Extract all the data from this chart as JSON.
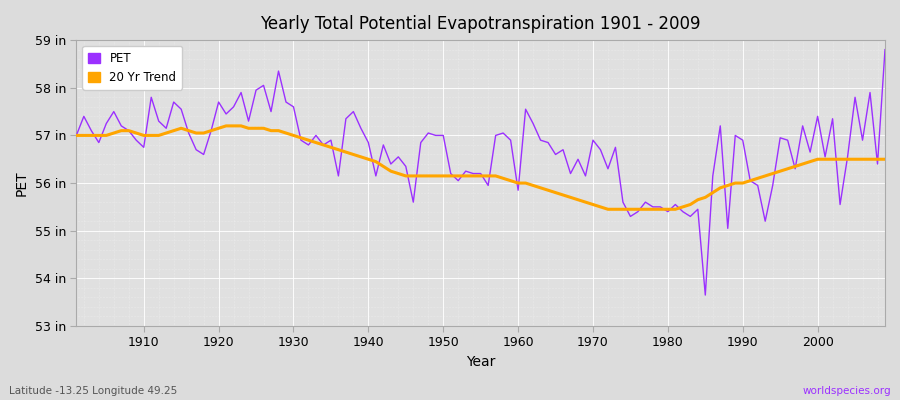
{
  "title": "Yearly Total Potential Evapotranspiration 1901 - 2009",
  "xlabel": "Year",
  "ylabel": "PET",
  "subtitle": "Latitude -13.25 Longitude 49.25",
  "watermark": "worldspecies.org",
  "years": [
    1901,
    1902,
    1903,
    1904,
    1905,
    1906,
    1907,
    1908,
    1909,
    1910,
    1911,
    1912,
    1913,
    1914,
    1915,
    1916,
    1917,
    1918,
    1919,
    1920,
    1921,
    1922,
    1923,
    1924,
    1925,
    1926,
    1927,
    1928,
    1929,
    1930,
    1931,
    1932,
    1933,
    1934,
    1935,
    1936,
    1937,
    1938,
    1939,
    1940,
    1941,
    1942,
    1943,
    1944,
    1945,
    1946,
    1947,
    1948,
    1949,
    1950,
    1951,
    1952,
    1953,
    1954,
    1955,
    1956,
    1957,
    1958,
    1959,
    1960,
    1961,
    1962,
    1963,
    1964,
    1965,
    1966,
    1967,
    1968,
    1969,
    1970,
    1971,
    1972,
    1973,
    1974,
    1975,
    1976,
    1977,
    1978,
    1979,
    1980,
    1981,
    1982,
    1983,
    1984,
    1985,
    1986,
    1987,
    1988,
    1989,
    1990,
    1991,
    1992,
    1993,
    1994,
    1995,
    1996,
    1997,
    1998,
    1999,
    2000,
    2001,
    2002,
    2003,
    2004,
    2005,
    2006,
    2007,
    2008,
    2009
  ],
  "pet": [
    57.0,
    57.4,
    57.1,
    56.85,
    57.25,
    57.5,
    57.2,
    57.1,
    56.9,
    56.75,
    57.8,
    57.3,
    57.15,
    57.7,
    57.55,
    57.05,
    56.7,
    56.6,
    57.1,
    57.7,
    57.45,
    57.6,
    57.9,
    57.3,
    57.95,
    58.05,
    57.5,
    58.35,
    57.7,
    57.6,
    56.9,
    56.8,
    57.0,
    56.8,
    56.9,
    56.15,
    57.35,
    57.5,
    57.15,
    56.85,
    56.15,
    56.8,
    56.4,
    56.55,
    56.35,
    55.6,
    56.85,
    57.05,
    57.0,
    57.0,
    56.2,
    56.05,
    56.25,
    56.2,
    56.2,
    55.95,
    57.0,
    57.05,
    56.9,
    55.85,
    57.55,
    57.25,
    56.9,
    56.85,
    56.6,
    56.7,
    56.2,
    56.5,
    56.15,
    56.9,
    56.7,
    56.3,
    56.75,
    55.6,
    55.3,
    55.4,
    55.6,
    55.5,
    55.5,
    55.4,
    55.55,
    55.4,
    55.3,
    55.45,
    53.65,
    56.15,
    57.2,
    55.05,
    57.0,
    56.9,
    56.05,
    55.95,
    55.2,
    55.95,
    56.95,
    56.9,
    56.3,
    57.2,
    56.65,
    57.4,
    56.55,
    57.35,
    55.55,
    56.55,
    57.8,
    56.9,
    57.9,
    56.4,
    58.8
  ],
  "trend": [
    57.0,
    57.0,
    57.0,
    57.0,
    57.0,
    57.05,
    57.1,
    57.1,
    57.05,
    57.0,
    57.0,
    57.0,
    57.05,
    57.1,
    57.15,
    57.1,
    57.05,
    57.05,
    57.1,
    57.15,
    57.2,
    57.2,
    57.2,
    57.15,
    57.15,
    57.15,
    57.1,
    57.1,
    57.05,
    57.0,
    56.95,
    56.9,
    56.85,
    56.8,
    56.75,
    56.7,
    56.65,
    56.6,
    56.55,
    56.5,
    56.45,
    56.35,
    56.25,
    56.2,
    56.15,
    56.15,
    56.15,
    56.15,
    56.15,
    56.15,
    56.15,
    56.15,
    56.15,
    56.15,
    56.15,
    56.15,
    56.15,
    56.1,
    56.05,
    56.0,
    56.0,
    55.95,
    55.9,
    55.85,
    55.8,
    55.75,
    55.7,
    55.65,
    55.6,
    55.55,
    55.5,
    55.45,
    55.45,
    55.45,
    55.45,
    55.45,
    55.45,
    55.45,
    55.45,
    55.45,
    55.45,
    55.5,
    55.55,
    55.65,
    55.7,
    55.8,
    55.9,
    55.95,
    56.0,
    56.0,
    56.05,
    56.1,
    56.15,
    56.2,
    56.25,
    56.3,
    56.35,
    56.4,
    56.45,
    56.5,
    56.5,
    56.5,
    56.5,
    56.5,
    56.5,
    56.5,
    56.5,
    56.5,
    56.5
  ],
  "pet_color": "#9B30FF",
  "trend_color": "#FFA500",
  "bg_color": "#DCDCDC",
  "plot_bg_color": "#E0E0E0",
  "grid_color": "#FFFFFF",
  "ylim": [
    53.0,
    59.0
  ],
  "yticks": [
    53,
    54,
    55,
    56,
    57,
    58,
    59
  ],
  "ytick_labels": [
    "53 in",
    "54 in",
    "55 in",
    "56 in",
    "57 in",
    "58 in",
    "59 in"
  ],
  "xlim": [
    1901,
    2009
  ],
  "xticks": [
    1910,
    1920,
    1930,
    1940,
    1950,
    1960,
    1970,
    1980,
    1990,
    2000
  ]
}
